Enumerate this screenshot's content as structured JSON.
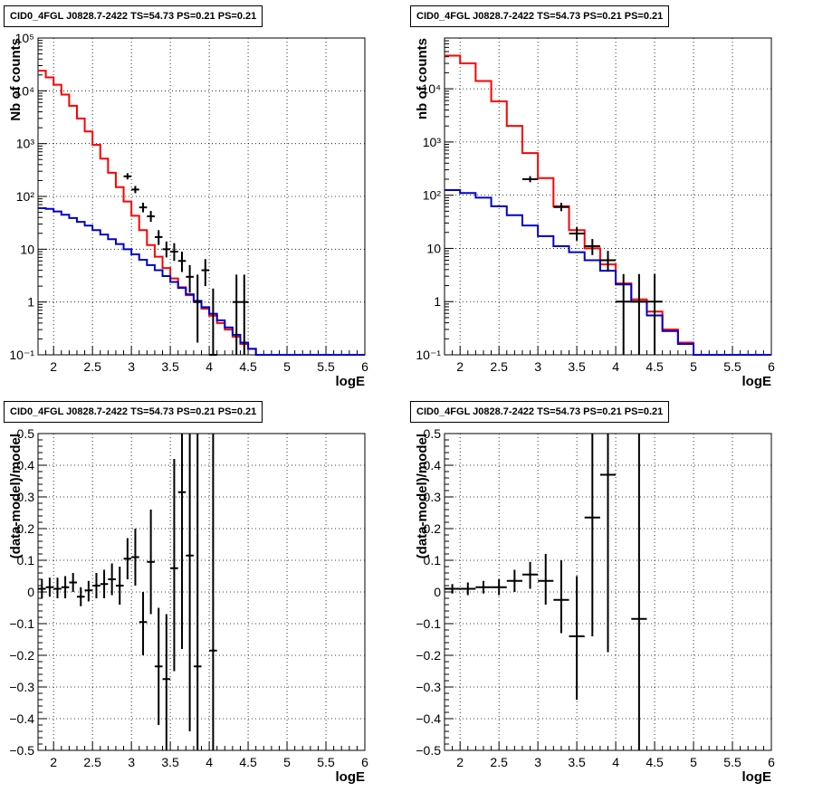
{
  "chart_data": [
    {
      "type": "step",
      "title": "CID0_4FGL J0828.7-2422 TS=54.73 PS=0.21 PS=0.21",
      "xlabel": "logE",
      "ylabel": "Nb of counts",
      "xlim": [
        1.8,
        6
      ],
      "ylim": [
        0.1,
        100000
      ],
      "yscale": "log",
      "grid": true,
      "xticks": [
        "2",
        "2.5",
        "3",
        "3.5",
        "4",
        "4.5",
        "5",
        "5.5",
        "6"
      ],
      "yticks": [
        "10⁻¹",
        "1",
        "10",
        "10²",
        "10³",
        "10⁴",
        "10⁵"
      ],
      "bin_edges": [
        1.8,
        1.9,
        2.0,
        2.1,
        2.2,
        2.3,
        2.4,
        2.5,
        2.6,
        2.7,
        2.8,
        2.9,
        3.0,
        3.1,
        3.2,
        3.3,
        3.4,
        3.5,
        3.6,
        3.7,
        3.8,
        3.9,
        4.0,
        4.1,
        4.2,
        4.3,
        4.4,
        4.5,
        4.6,
        4.7,
        4.8,
        4.9,
        5.0,
        5.1,
        5.2,
        5.3,
        5.4,
        5.5,
        5.6,
        5.7,
        5.8,
        5.9,
        6.0
      ],
      "series": [
        {
          "color": "#ff0000",
          "values": [
            24000,
            18000,
            13000,
            8500,
            5200,
            3000,
            1700,
            950,
            520,
            280,
            150,
            80,
            43,
            23,
            12,
            7.2,
            4.4,
            2.8,
            1.9,
            1.35,
            1.0,
            0.75,
            0.55,
            0.4,
            0.3,
            0.22,
            0.16,
            0.13,
            0.1,
            0.1,
            0.1,
            0.1,
            0.1,
            0.1,
            0.1,
            0.1,
            0.1,
            0.1,
            0.1,
            0.1,
            0.1,
            0.1
          ]
        },
        {
          "color": "#0000cc",
          "values": [
            60,
            58,
            52,
            45,
            39,
            33,
            28,
            23,
            19,
            15.5,
            12.5,
            10,
            8,
            6.3,
            5,
            4,
            3.1,
            2.4,
            1.85,
            1.4,
            1.05,
            0.8,
            0.6,
            0.45,
            0.33,
            0.24,
            0.17,
            0.13,
            0.1,
            0.1,
            0.1,
            0.1,
            0.1,
            0.1,
            0.1,
            0.1,
            0.1,
            0.1,
            0.1,
            0.1,
            0.1,
            0.1
          ]
        }
      ],
      "points": [
        {
          "x": 2.95,
          "y": 240,
          "lo": 210,
          "hi": 275,
          "xerr": 0.05
        },
        {
          "x": 3.05,
          "y": 135,
          "lo": 115,
          "hi": 158,
          "xerr": 0.05
        },
        {
          "x": 3.15,
          "y": 62,
          "lo": 50,
          "hi": 76,
          "xerr": 0.05
        },
        {
          "x": 3.25,
          "y": 42,
          "lo": 33,
          "hi": 53,
          "xerr": 0.05
        },
        {
          "x": 3.35,
          "y": 17,
          "lo": 12,
          "hi": 23,
          "xerr": 0.05
        },
        {
          "x": 3.45,
          "y": 10,
          "lo": 7,
          "hi": 14,
          "xerr": 0.05
        },
        {
          "x": 3.55,
          "y": 9,
          "lo": 6,
          "hi": 13,
          "xerr": 0.05
        },
        {
          "x": 3.65,
          "y": 6,
          "lo": 3.7,
          "hi": 9,
          "xerr": 0.05
        },
        {
          "x": 3.75,
          "y": 3,
          "lo": 1.5,
          "hi": 5,
          "xerr": 0.05
        },
        {
          "x": 3.85,
          "y": 1.0,
          "lo": 0.17,
          "hi": 3.3,
          "xerr": 0.05
        },
        {
          "x": 3.95,
          "y": 4,
          "lo": 2,
          "hi": 6.5,
          "xerr": 0.05
        },
        {
          "x": 4.05,
          "y": 0.1,
          "lo": 0.1,
          "hi": 1.8,
          "xerr": 0.05
        },
        {
          "x": 4.35,
          "y": 1.0,
          "lo": 0.1,
          "hi": 3.3,
          "xerr": 0.05
        },
        {
          "x": 4.45,
          "y": 1.0,
          "lo": 0.1,
          "hi": 3.3,
          "xerr": 0.05
        }
      ]
    },
    {
      "type": "step",
      "title": "CID0_4FGL J0828.7-2422 TS=54.73 PS=0.21 PS=0.21",
      "xlabel": "logE",
      "ylabel": "nb of counts",
      "xlim": [
        1.8,
        6
      ],
      "ylim": [
        0.1,
        90000
      ],
      "yscale": "log",
      "grid": true,
      "xticks": [
        "2",
        "2.5",
        "3",
        "3.5",
        "4",
        "4.5",
        "5",
        "5.5",
        "6"
      ],
      "yticks": [
        "10⁻¹",
        "1",
        "10",
        "10²",
        "10³",
        "10⁴"
      ],
      "bin_edges": [
        1.8,
        2.0,
        2.2,
        2.4,
        2.6,
        2.8,
        3.0,
        3.2,
        3.4,
        3.6,
        3.8,
        4.0,
        4.2,
        4.4,
        4.6,
        4.8,
        5.0,
        5.2,
        5.4,
        5.6,
        5.8,
        6.0
      ],
      "series": [
        {
          "color": "#ff0000",
          "values": [
            42000,
            30000,
            14000,
            5800,
            2000,
            620,
            210,
            62,
            22,
            10,
            5,
            2.2,
            1.1,
            0.65,
            0.3,
            0.17,
            0.1,
            0.1,
            0.1,
            0.1,
            0.1
          ]
        },
        {
          "color": "#0000cc",
          "values": [
            125,
            110,
            90,
            62,
            42,
            27,
            17,
            11,
            8.5,
            6,
            3.8,
            2.1,
            1.0,
            0.55,
            0.28,
            0.16,
            0.1,
            0.1,
            0.1,
            0.1,
            0.1
          ]
        }
      ],
      "points": [
        {
          "x": 2.9,
          "y": 200,
          "lo": 175,
          "hi": 228,
          "xerr": 0.1
        },
        {
          "x": 3.3,
          "y": 60,
          "lo": 50,
          "hi": 72,
          "xerr": 0.1
        },
        {
          "x": 3.5,
          "y": 19,
          "lo": 14,
          "hi": 25,
          "xerr": 0.1
        },
        {
          "x": 3.7,
          "y": 11,
          "lo": 7.5,
          "hi": 15,
          "xerr": 0.1
        },
        {
          "x": 3.9,
          "y": 6,
          "lo": 3.7,
          "hi": 9,
          "xerr": 0.1
        },
        {
          "x": 4.1,
          "y": 1.0,
          "lo": 0.1,
          "hi": 3.3,
          "xerr": 0.1
        },
        {
          "x": 4.3,
          "y": 1.0,
          "lo": 0.1,
          "hi": 3.3,
          "xerr": 0.1
        },
        {
          "x": 4.5,
          "y": 1.0,
          "lo": 0.1,
          "hi": 3.3,
          "xerr": 0.1
        }
      ]
    },
    {
      "type": "errorbar",
      "title": "CID0_4FGL J0828.7-2422 TS=54.73 PS=0.21 PS=0.21",
      "xlabel": "logE",
      "ylabel": "(data-model)/model",
      "xlim": [
        1.8,
        6
      ],
      "ylim": [
        -0.5,
        0.5
      ],
      "grid": true,
      "xticks": [
        "2",
        "2.5",
        "3",
        "3.5",
        "4",
        "4.5",
        "5",
        "5.5",
        "6"
      ],
      "yticks": [
        "−0.5",
        "−0.4",
        "−0.3",
        "−0.2",
        "−0.1",
        "0",
        "0.1",
        "0.2",
        "0.3",
        "0.4",
        "0.5"
      ],
      "points": [
        {
          "x": 1.85,
          "y": 0.01,
          "lo": -0.02,
          "hi": 0.04,
          "xerr": 0.05
        },
        {
          "x": 1.95,
          "y": 0.015,
          "lo": -0.015,
          "hi": 0.045,
          "xerr": 0.05
        },
        {
          "x": 2.05,
          "y": 0.01,
          "lo": -0.02,
          "hi": 0.045,
          "xerr": 0.05
        },
        {
          "x": 2.15,
          "y": 0.015,
          "lo": -0.02,
          "hi": 0.05,
          "xerr": 0.05
        },
        {
          "x": 2.25,
          "y": 0.03,
          "lo": 0.0,
          "hi": 0.06,
          "xerr": 0.05
        },
        {
          "x": 2.35,
          "y": -0.015,
          "lo": -0.045,
          "hi": 0.015,
          "xerr": 0.05
        },
        {
          "x": 2.45,
          "y": 0.005,
          "lo": -0.03,
          "hi": 0.035,
          "xerr": 0.05
        },
        {
          "x": 2.55,
          "y": 0.02,
          "lo": -0.02,
          "hi": 0.06,
          "xerr": 0.05
        },
        {
          "x": 2.65,
          "y": 0.025,
          "lo": -0.02,
          "hi": 0.07,
          "xerr": 0.05
        },
        {
          "x": 2.75,
          "y": 0.04,
          "lo": -0.01,
          "hi": 0.09,
          "xerr": 0.05
        },
        {
          "x": 2.85,
          "y": 0.02,
          "lo": -0.04,
          "hi": 0.08,
          "xerr": 0.05
        },
        {
          "x": 2.95,
          "y": 0.105,
          "lo": 0.04,
          "hi": 0.17,
          "xerr": 0.05
        },
        {
          "x": 3.05,
          "y": 0.11,
          "lo": 0.02,
          "hi": 0.2,
          "xerr": 0.05
        },
        {
          "x": 3.15,
          "y": -0.095,
          "lo": -0.2,
          "hi": 0.0,
          "xerr": 0.05
        },
        {
          "x": 3.25,
          "y": 0.095,
          "lo": -0.07,
          "hi": 0.26,
          "xerr": 0.05
        },
        {
          "x": 3.35,
          "y": -0.235,
          "lo": -0.42,
          "hi": -0.05,
          "xerr": 0.05
        },
        {
          "x": 3.45,
          "y": -0.275,
          "lo": -0.5,
          "hi": -0.07,
          "xerr": 0.05
        },
        {
          "x": 3.55,
          "y": 0.075,
          "lo": -0.25,
          "hi": 0.42,
          "xerr": 0.05
        },
        {
          "x": 3.65,
          "y": 0.315,
          "lo": -0.18,
          "hi": 0.5,
          "xerr": 0.05
        },
        {
          "x": 3.75,
          "y": 0.115,
          "lo": -0.44,
          "hi": 0.5,
          "xerr": 0.05
        },
        {
          "x": 3.85,
          "y": -0.235,
          "lo": -0.5,
          "hi": 0.5,
          "xerr": 0.05
        },
        {
          "x": 4.05,
          "y": -0.185,
          "lo": -0.5,
          "hi": 0.5,
          "xerr": 0.05
        }
      ]
    },
    {
      "type": "errorbar",
      "title": "CID0_4FGL J0828.7-2422 TS=54.73 PS=0.21 PS=0.21",
      "xlabel": "logE",
      "ylabel": "(data-model)/model",
      "xlim": [
        1.8,
        6
      ],
      "ylim": [
        -0.5,
        0.5
      ],
      "grid": true,
      "xticks": [
        "2",
        "2.5",
        "3",
        "3.5",
        "4",
        "4.5",
        "5",
        "5.5",
        "6"
      ],
      "yticks": [
        "−0.5",
        "−0.4",
        "−0.3",
        "−0.2",
        "−0.1",
        "0",
        "0.1",
        "0.2",
        "0.3",
        "0.4",
        "0.5"
      ],
      "points": [
        {
          "x": 1.9,
          "y": 0.01,
          "lo": -0.005,
          "hi": 0.025,
          "xerr": 0.1
        },
        {
          "x": 2.1,
          "y": 0.01,
          "lo": -0.01,
          "hi": 0.03,
          "xerr": 0.1
        },
        {
          "x": 2.3,
          "y": 0.015,
          "lo": -0.005,
          "hi": 0.035,
          "xerr": 0.1
        },
        {
          "x": 2.5,
          "y": 0.015,
          "lo": -0.01,
          "hi": 0.04,
          "xerr": 0.1
        },
        {
          "x": 2.7,
          "y": 0.035,
          "lo": 0.0,
          "hi": 0.07,
          "xerr": 0.1
        },
        {
          "x": 2.9,
          "y": 0.055,
          "lo": 0.01,
          "hi": 0.095,
          "xerr": 0.1
        },
        {
          "x": 3.1,
          "y": 0.035,
          "lo": -0.04,
          "hi": 0.12,
          "xerr": 0.1
        },
        {
          "x": 3.3,
          "y": -0.025,
          "lo": -0.13,
          "hi": 0.1,
          "xerr": 0.1
        },
        {
          "x": 3.5,
          "y": -0.14,
          "lo": -0.34,
          "hi": 0.05,
          "xerr": 0.1
        },
        {
          "x": 3.7,
          "y": 0.235,
          "lo": -0.14,
          "hi": 0.5,
          "xerr": 0.1
        },
        {
          "x": 3.9,
          "y": 0.37,
          "lo": -0.19,
          "hi": 0.5,
          "xerr": 0.1
        },
        {
          "x": 4.3,
          "y": -0.085,
          "lo": -0.5,
          "hi": 0.5,
          "xerr": 0.1
        }
      ]
    }
  ]
}
